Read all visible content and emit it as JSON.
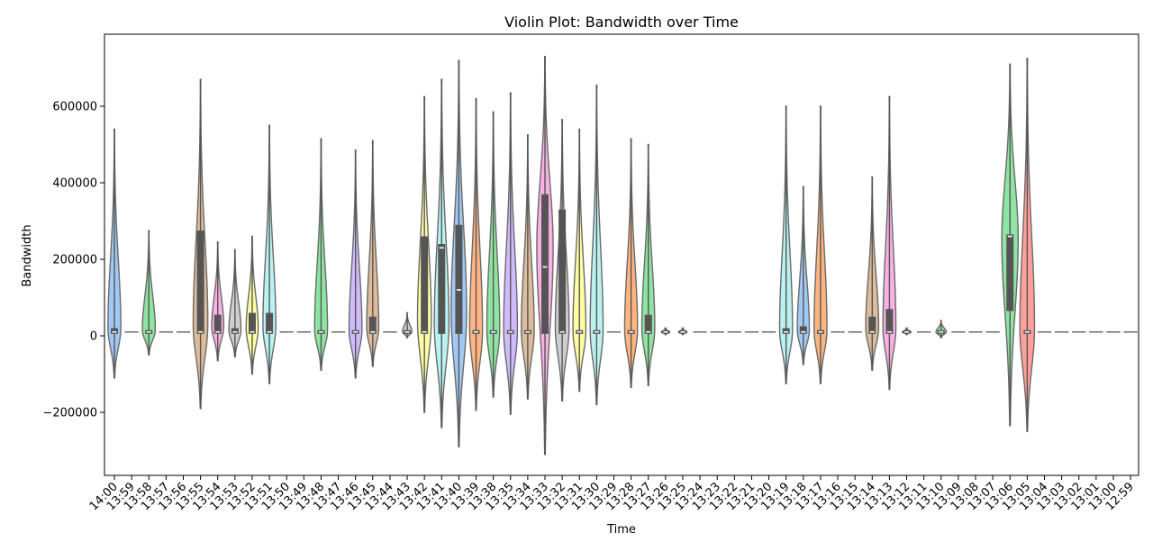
{
  "chart_data": {
    "type": "violin",
    "title": "Violin Plot: Bandwidth over Time",
    "xlabel": "Time",
    "ylabel": "Bandwidth",
    "ylim": [
      -330000,
      780000
    ],
    "yticks": [
      -200000,
      0,
      200000,
      400000,
      600000
    ],
    "ytick_labels": [
      "−200000",
      "0",
      "200000",
      "400000",
      "600000"
    ],
    "categories": [
      "14:00",
      "13:59",
      "13:58",
      "13:57",
      "13:56",
      "13:55",
      "13:54",
      "13:53",
      "13:52",
      "13:51",
      "13:50",
      "13:49",
      "13:48",
      "13:47",
      "13:46",
      "13:45",
      "13:44",
      "13:43",
      "13:42",
      "13:41",
      "13:40",
      "13:39",
      "13:38",
      "13:35",
      "13:34",
      "13:33",
      "13:32",
      "13:31",
      "13:30",
      "13:29",
      "13:28",
      "13:27",
      "13:26",
      "13:25",
      "13:24",
      "13:23",
      "13:22",
      "13:21",
      "13:20",
      "13:19",
      "13:18",
      "13:17",
      "13:16",
      "13:15",
      "13:14",
      "13:13",
      "13:12",
      "13:11",
      "13:10",
      "13:09",
      "13:08",
      "13:07",
      "13:06",
      "13:05",
      "13:04",
      "13:03",
      "13:02",
      "13:01",
      "13:00",
      "12:59"
    ],
    "violins": [
      {
        "min": -110000,
        "max": 540000,
        "q1": 5000,
        "q3": 20000,
        "median": 10000,
        "peak": 20000,
        "width": 0.75,
        "color": "#a1c9f4"
      },
      {
        "flat": true,
        "median": 10000
      },
      {
        "min": -50000,
        "max": 275000,
        "q1": 5000,
        "q3": 15000,
        "median": 10000,
        "peak": 15000,
        "width": 0.75,
        "color": "#8de5a1"
      },
      {
        "flat": true,
        "median": 10000
      },
      {
        "flat": true,
        "median": 10000
      },
      {
        "min": -190000,
        "max": 670000,
        "q1": 5000,
        "q3": 275000,
        "median": 10000,
        "peak": 30000,
        "width": 0.85,
        "color": "#debb9b"
      },
      {
        "min": -65000,
        "max": 245000,
        "q1": 5000,
        "q3": 55000,
        "median": 10000,
        "peak": 25000,
        "width": 0.7,
        "color": "#fab0e4"
      },
      {
        "min": -55000,
        "max": 225000,
        "q1": 5000,
        "q3": 20000,
        "median": 10000,
        "peak": 15000,
        "width": 0.7,
        "color": "#cfcfcf"
      },
      {
        "min": -100000,
        "max": 260000,
        "q1": 5000,
        "q3": 60000,
        "median": 10000,
        "peak": 20000,
        "width": 0.7,
        "color": "#fffea3"
      },
      {
        "min": -125000,
        "max": 550000,
        "q1": 5000,
        "q3": 60000,
        "median": 10000,
        "peak": 25000,
        "width": 0.75,
        "color": "#b9f2f0"
      },
      {
        "flat": true,
        "median": 10000
      },
      {
        "flat": true,
        "median": 10000
      },
      {
        "min": -90000,
        "max": 515000,
        "q1": 5000,
        "q3": 15000,
        "median": 10000,
        "peak": 15000,
        "width": 0.75,
        "color": "#8de5a1"
      },
      {
        "flat": true,
        "median": 10000
      },
      {
        "min": -110000,
        "max": 485000,
        "q1": 5000,
        "q3": 15000,
        "median": 10000,
        "peak": 15000,
        "width": 0.75,
        "color": "#d0bbff"
      },
      {
        "min": -80000,
        "max": 510000,
        "q1": 5000,
        "q3": 50000,
        "median": 10000,
        "peak": 20000,
        "width": 0.7,
        "color": "#debb9b"
      },
      {
        "flat": true,
        "median": 10000
      },
      {
        "min": -5000,
        "max": 60000,
        "q1": 5000,
        "q3": 15000,
        "median": 10000,
        "peak": 10000,
        "width": 0.55,
        "color": "#cfcfcf"
      },
      {
        "min": -200000,
        "max": 625000,
        "q1": 5000,
        "q3": 260000,
        "median": 10000,
        "peak": 40000,
        "width": 0.8,
        "color": "#fffea3"
      },
      {
        "min": -240000,
        "max": 670000,
        "q1": 5000,
        "q3": 240000,
        "median": 230000,
        "peak": 30000,
        "width": 0.85,
        "color": "#b9f2f0"
      },
      {
        "min": -290000,
        "max": 720000,
        "q1": 5000,
        "q3": 290000,
        "median": 120000,
        "peak": 60000,
        "width": 0.9,
        "color": "#a1c9f4"
      },
      {
        "min": -195000,
        "max": 620000,
        "q1": 5000,
        "q3": 15000,
        "median": 10000,
        "peak": 15000,
        "width": 0.75,
        "color": "#ffb482"
      },
      {
        "min": -160000,
        "max": 585000,
        "q1": 5000,
        "q3": 15000,
        "median": 10000,
        "peak": 15000,
        "width": 0.75,
        "color": "#8de5a1"
      },
      {
        "min": -205000,
        "max": 635000,
        "q1": 5000,
        "q3": 15000,
        "median": 10000,
        "peak": 15000,
        "width": 0.8,
        "color": "#d0bbff"
      },
      {
        "min": -165000,
        "max": 525000,
        "q1": 5000,
        "q3": 15000,
        "median": 10000,
        "peak": 15000,
        "width": 0.75,
        "color": "#debb9b"
      },
      {
        "min": -310000,
        "max": 730000,
        "q1": 5000,
        "q3": 370000,
        "median": 180000,
        "peak": 230000,
        "width": 0.95,
        "color": "#fab0e4"
      },
      {
        "min": -170000,
        "max": 565000,
        "q1": 5000,
        "q3": 330000,
        "median": 10000,
        "peak": 20000,
        "width": 0.8,
        "color": "#cfcfcf"
      },
      {
        "min": -145000,
        "max": 540000,
        "q1": 5000,
        "q3": 15000,
        "median": 10000,
        "peak": 15000,
        "width": 0.75,
        "color": "#fffea3"
      },
      {
        "min": -180000,
        "max": 655000,
        "q1": 5000,
        "q3": 15000,
        "median": 10000,
        "peak": 15000,
        "width": 0.75,
        "color": "#b9f2f0"
      },
      {
        "flat": true,
        "median": 10000
      },
      {
        "min": -135000,
        "max": 515000,
        "q1": 5000,
        "q3": 15000,
        "median": 10000,
        "peak": 15000,
        "width": 0.75,
        "color": "#ffb482"
      },
      {
        "min": -130000,
        "max": 500000,
        "q1": 5000,
        "q3": 55000,
        "median": 10000,
        "peak": 20000,
        "width": 0.75,
        "color": "#8de5a1"
      },
      {
        "min": 3000,
        "max": 20000,
        "q1": 6000,
        "q3": 14000,
        "median": 10000,
        "peak": 10000,
        "width": 0.5,
        "color": "#d0bbff"
      },
      {
        "min": 3000,
        "max": 20000,
        "q1": 6000,
        "q3": 14000,
        "median": 10000,
        "peak": 10000,
        "width": 0.5,
        "color": "#debb9b"
      },
      {
        "flat": true,
        "median": 10000
      },
      {
        "flat": true,
        "median": 10000
      },
      {
        "flat": true,
        "median": 10000
      },
      {
        "flat": true,
        "median": 10000
      },
      {
        "flat": true,
        "median": 10000
      },
      {
        "min": -125000,
        "max": 600000,
        "q1": 5000,
        "q3": 20000,
        "median": 10000,
        "peak": 15000,
        "width": 0.75,
        "color": "#b9f2f0"
      },
      {
        "min": -75000,
        "max": 390000,
        "q1": 5000,
        "q3": 25000,
        "median": 10000,
        "peak": 15000,
        "width": 0.7,
        "color": "#a1c9f4"
      },
      {
        "min": -125000,
        "max": 600000,
        "q1": 5000,
        "q3": 15000,
        "median": 10000,
        "peak": 15000,
        "width": 0.75,
        "color": "#ffb482"
      },
      {
        "flat": true,
        "median": 10000
      },
      {
        "flat": true,
        "median": 10000
      },
      {
        "min": -90000,
        "max": 415000,
        "q1": 5000,
        "q3": 50000,
        "median": 10000,
        "peak": 20000,
        "width": 0.75,
        "color": "#debb9b"
      },
      {
        "min": -140000,
        "max": 625000,
        "q1": 5000,
        "q3": 70000,
        "median": 10000,
        "peak": 20000,
        "width": 0.75,
        "color": "#fab0e4"
      },
      {
        "min": 3000,
        "max": 20000,
        "q1": 6000,
        "q3": 14000,
        "median": 10000,
        "peak": 10000,
        "width": 0.5,
        "color": "#cfcfcf"
      },
      {
        "flat": true,
        "median": 10000
      },
      {
        "min": -5000,
        "max": 40000,
        "q1": 5000,
        "q3": 15000,
        "median": 10000,
        "peak": 10000,
        "width": 0.6,
        "color": "#8de5a1"
      },
      {
        "flat": true,
        "median": 10000
      },
      {
        "flat": true,
        "median": 10000
      },
      {
        "flat": true,
        "median": 10000
      },
      {
        "min": -235000,
        "max": 710000,
        "q1": 65000,
        "q3": 265000,
        "median": 260000,
        "peak": 250000,
        "width": 0.95,
        "color": "#8de5a1"
      },
      {
        "min": -250000,
        "max": 725000,
        "q1": 5000,
        "q3": 15000,
        "median": 10000,
        "peak": 20000,
        "width": 0.85,
        "color": "#ff9f9b"
      },
      {
        "flat": true,
        "median": 10000
      },
      {
        "flat": true,
        "median": 10000
      },
      {
        "flat": true,
        "median": 10000
      },
      {
        "flat": true,
        "median": 10000
      },
      {
        "flat": true,
        "median": 10000
      },
      {
        "flat": true,
        "median": 10000
      }
    ],
    "grid": false,
    "legend": "none"
  }
}
